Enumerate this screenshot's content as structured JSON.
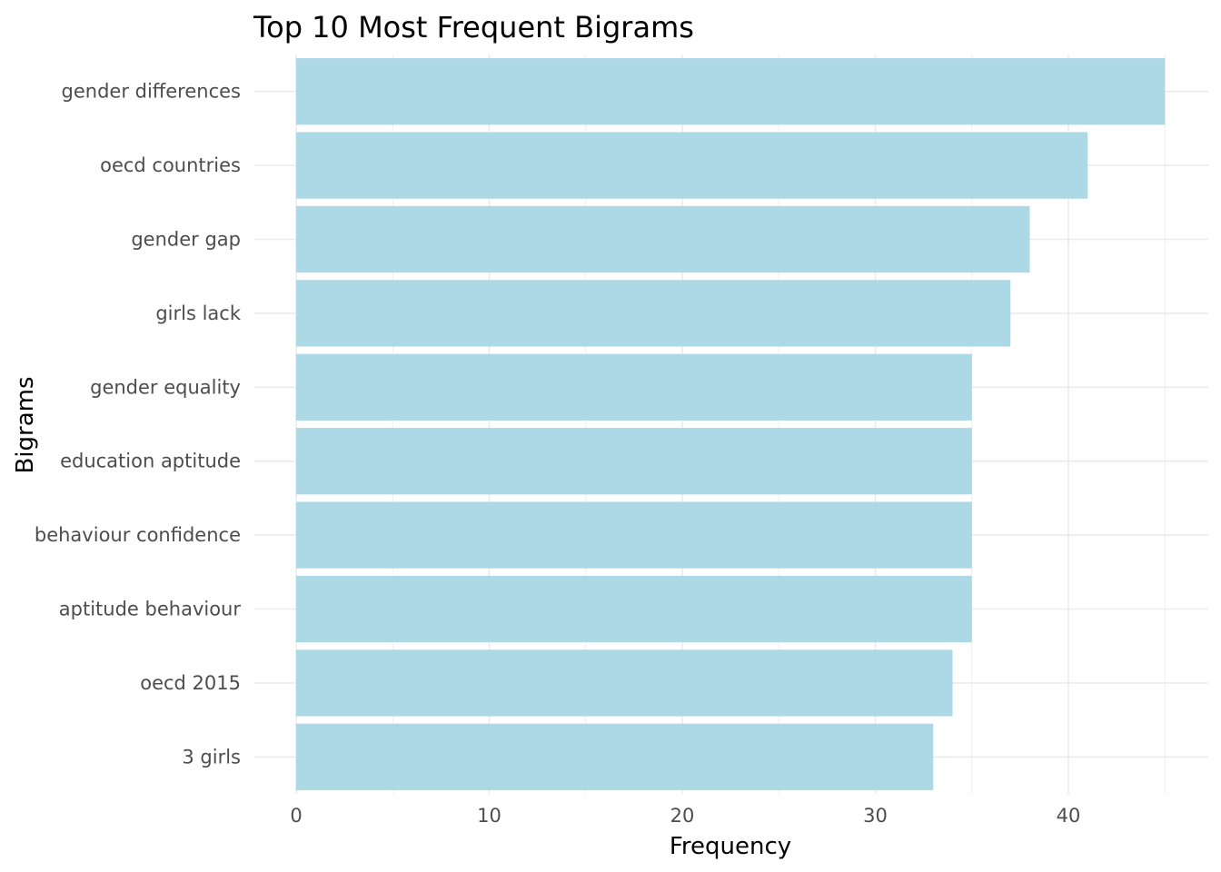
{
  "chart_data": {
    "type": "bar",
    "orientation": "horizontal",
    "title": "Top 10 Most Frequent Bigrams",
    "xlabel": "Frequency",
    "ylabel": "Bigrams",
    "categories": [
      "gender differences",
      "oecd countries",
      "gender gap",
      "girls lack",
      "gender equality",
      "education aptitude",
      "behaviour confidence",
      "aptitude behaviour",
      "oecd 2015",
      "3 girls"
    ],
    "values": [
      45,
      41,
      38,
      37,
      35,
      35,
      35,
      35,
      34,
      33
    ],
    "xticks": [
      "0",
      "10",
      "20",
      "30",
      "40"
    ],
    "xlim": [
      0,
      47.25
    ],
    "bar_color": "#add8e6",
    "grid": true,
    "legend": "none"
  }
}
